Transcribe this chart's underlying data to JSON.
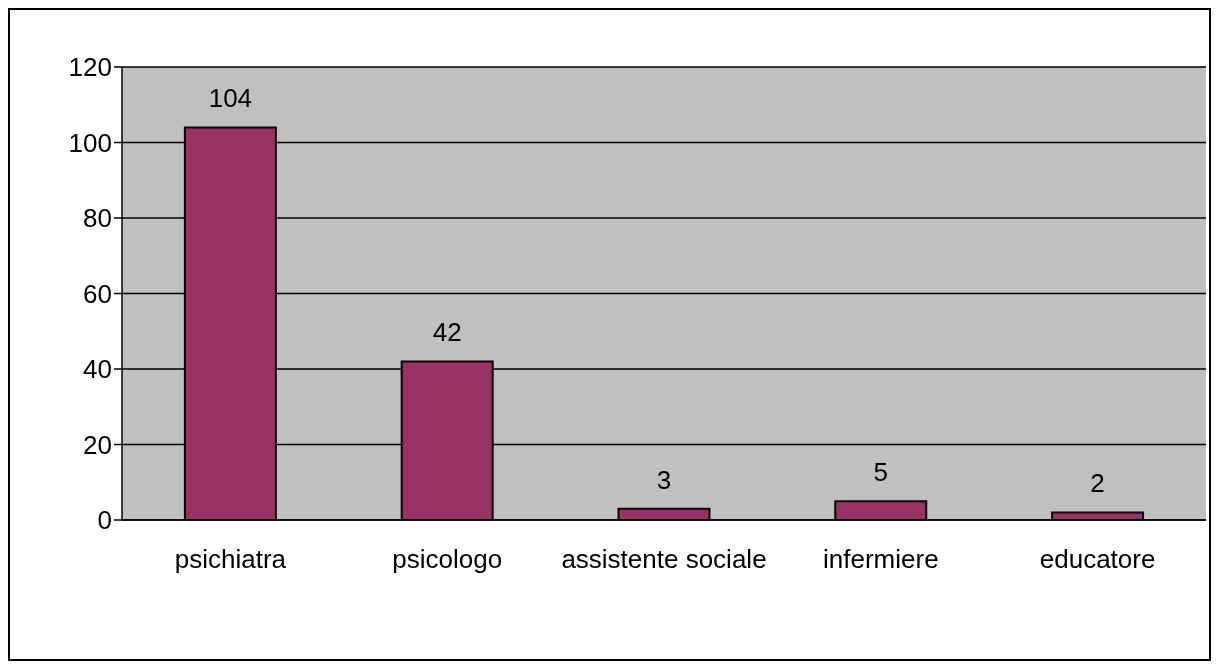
{
  "chart_data": {
    "type": "bar",
    "categories": [
      "psichiatra",
      "psicologo",
      "assistente sociale",
      "infermiere",
      "educatore"
    ],
    "values": [
      104,
      42,
      3,
      5,
      2
    ],
    "color": "#993366",
    "ylim": [
      0,
      120
    ],
    "yticks": [
      0,
      20,
      40,
      60,
      80,
      100,
      120
    ],
    "grid": "y",
    "data_labels": true
  }
}
